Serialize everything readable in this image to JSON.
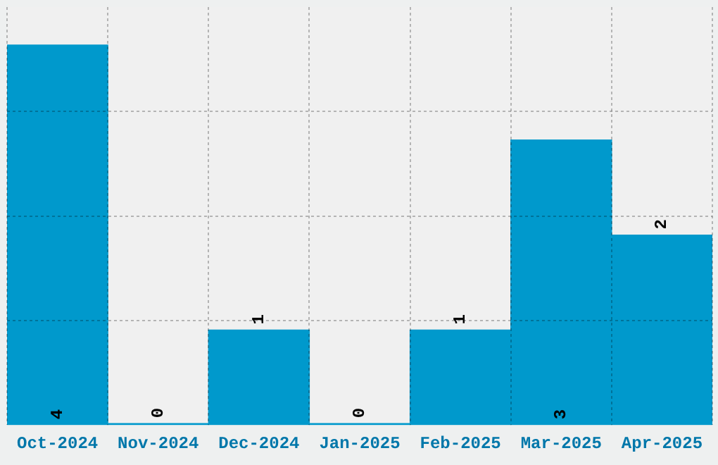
{
  "chart_data": {
    "type": "bar",
    "categories": [
      "Oct-2024",
      "Nov-2024",
      "Dec-2024",
      "Jan-2025",
      "Feb-2025",
      "Mar-2025",
      "Apr-2025"
    ],
    "values": [
      4,
      0,
      1,
      0,
      1,
      3,
      2
    ],
    "color": "#0099cc",
    "data_labels": true,
    "relative": false,
    "ylim": [
      0,
      4.4
    ],
    "yticks": [
      {
        "value": 1.1,
        "label": null
      },
      {
        "value": 2.2,
        "label": null
      },
      {
        "value": 3.3,
        "label": null
      }
    ],
    "grid": true,
    "tick_labels": "x",
    "legend": false
  }
}
